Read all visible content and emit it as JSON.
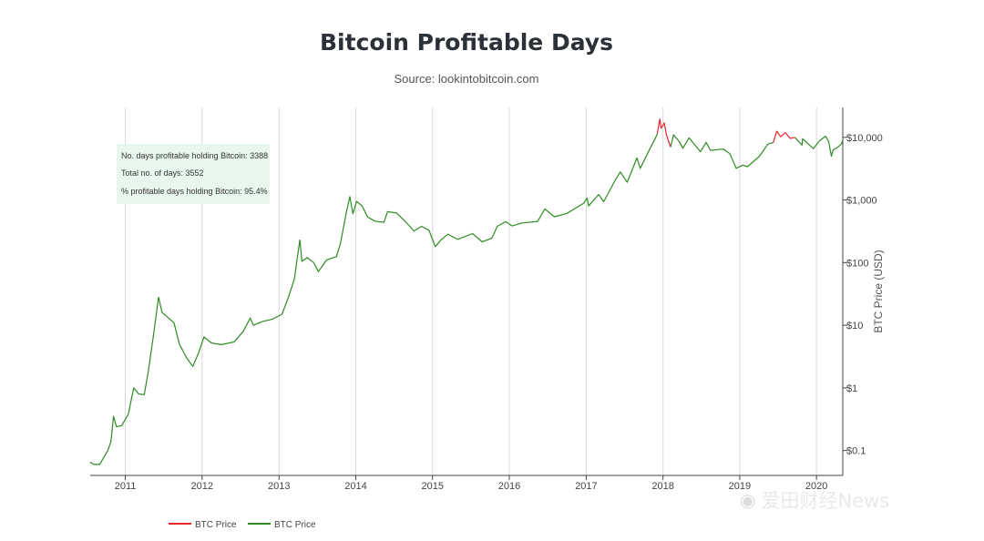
{
  "chart_data": {
    "type": "line",
    "title": "Bitcoin Profitable Days",
    "subtitle": "Source: lookintobitcoin.com",
    "ylabel": "BTC Price (USD)",
    "y_scale": "log",
    "ylim": [
      0.04,
      30000
    ],
    "xlim": [
      "2010-07-18",
      "2020-05-05"
    ],
    "x_tick_labels": [
      "2011",
      "2012",
      "2013",
      "2014",
      "2015",
      "2016",
      "2017",
      "2018",
      "2019",
      "2020"
    ],
    "y_tick_labels": [
      "$10,000",
      "$1,000",
      "$100",
      "$10",
      "$1",
      "$0.1"
    ],
    "y_tick_values": [
      10000,
      1000,
      100,
      10,
      1,
      0.1
    ],
    "grid": "vertical",
    "info_box": {
      "profitable_line": "No. days profitable holding Bitcoin: 3388",
      "total_line": "Total no. of days: 3552",
      "percent_line": "% profitable days holding Bitcoin: 95.4%"
    },
    "legend": [
      {
        "name": "BTC Price",
        "color": "#e8262a"
      },
      {
        "name": "BTC Price",
        "color": "#2e8b23"
      }
    ],
    "legend_placement": "bottom-left",
    "series": [
      {
        "name": "BTC Price",
        "color": "#2e8b23",
        "points": [
          [
            "2010-07-18",
            0.065
          ],
          [
            "2010-08-05",
            0.06
          ],
          [
            "2010-09-01",
            0.06
          ],
          [
            "2010-10-10",
            0.1
          ],
          [
            "2010-10-25",
            0.14
          ],
          [
            "2010-11-06",
            0.35
          ],
          [
            "2010-11-20",
            0.24
          ],
          [
            "2010-12-15",
            0.25
          ],
          [
            "2011-01-15",
            0.38
          ],
          [
            "2011-02-10",
            1.0
          ],
          [
            "2011-03-05",
            0.8
          ],
          [
            "2011-04-01",
            0.78
          ],
          [
            "2011-04-20",
            1.8
          ],
          [
            "2011-05-15",
            7.0
          ],
          [
            "2011-06-08",
            28
          ],
          [
            "2011-06-25",
            16
          ],
          [
            "2011-07-15",
            14
          ],
          [
            "2011-08-20",
            11
          ],
          [
            "2011-09-15",
            5.0
          ],
          [
            "2011-10-20",
            3.0
          ],
          [
            "2011-11-18",
            2.2
          ],
          [
            "2011-12-15",
            3.6
          ],
          [
            "2012-01-10",
            6.5
          ],
          [
            "2012-02-15",
            5.2
          ],
          [
            "2012-04-01",
            4.9
          ],
          [
            "2012-06-01",
            5.4
          ],
          [
            "2012-07-15",
            8.0
          ],
          [
            "2012-08-17",
            13
          ],
          [
            "2012-09-01",
            10
          ],
          [
            "2012-10-15",
            11.5
          ],
          [
            "2012-12-01",
            12.5
          ],
          [
            "2013-01-15",
            15
          ],
          [
            "2013-02-15",
            28
          ],
          [
            "2013-03-15",
            55
          ],
          [
            "2013-04-10",
            230
          ],
          [
            "2013-04-20",
            105
          ],
          [
            "2013-05-15",
            120
          ],
          [
            "2013-06-15",
            100
          ],
          [
            "2013-07-07",
            72
          ],
          [
            "2013-08-15",
            110
          ],
          [
            "2013-10-01",
            125
          ],
          [
            "2013-10-20",
            200
          ],
          [
            "2013-11-18",
            650
          ],
          [
            "2013-12-04",
            1130
          ],
          [
            "2013-12-18",
            600
          ],
          [
            "2014-01-05",
            950
          ],
          [
            "2014-02-01",
            800
          ],
          [
            "2014-02-25",
            540
          ],
          [
            "2014-04-01",
            460
          ],
          [
            "2014-05-15",
            440
          ],
          [
            "2014-06-01",
            650
          ],
          [
            "2014-07-15",
            620
          ],
          [
            "2014-08-15",
            490
          ],
          [
            "2014-10-05",
            320
          ],
          [
            "2014-11-10",
            380
          ],
          [
            "2014-12-15",
            330
          ],
          [
            "2015-01-14",
            180
          ],
          [
            "2015-02-10",
            230
          ],
          [
            "2015-03-15",
            285
          ],
          [
            "2015-05-01",
            235
          ],
          [
            "2015-07-10",
            290
          ],
          [
            "2015-08-25",
            215
          ],
          [
            "2015-10-10",
            245
          ],
          [
            "2015-11-05",
            380
          ],
          [
            "2015-12-15",
            450
          ],
          [
            "2016-01-15",
            385
          ],
          [
            "2016-03-01",
            430
          ],
          [
            "2016-05-15",
            455
          ],
          [
            "2016-06-18",
            720
          ],
          [
            "2016-08-02",
            540
          ],
          [
            "2016-10-01",
            610
          ],
          [
            "2016-12-20",
            890
          ],
          [
            "2017-01-05",
            1080
          ],
          [
            "2017-01-12",
            800
          ],
          [
            "2017-03-01",
            1220
          ],
          [
            "2017-03-25",
            940
          ],
          [
            "2017-05-20",
            2100
          ],
          [
            "2017-06-12",
            2800
          ],
          [
            "2017-07-15",
            1920
          ],
          [
            "2017-08-30",
            4700
          ],
          [
            "2017-09-15",
            3200
          ],
          [
            "2017-11-01",
            6700
          ],
          [
            "2017-11-28",
            10000
          ],
          [
            "2017-12-05",
            11500
          ]
        ]
      },
      {
        "name": "BTC Price",
        "color": "#e8262a",
        "points": [
          [
            "2017-12-05",
            11500
          ],
          [
            "2017-12-17",
            19500
          ],
          [
            "2017-12-23",
            14000
          ],
          [
            "2018-01-07",
            17000
          ],
          [
            "2018-01-17",
            11000
          ],
          [
            "2018-02-06",
            7000
          ]
        ]
      },
      {
        "name": "BTC Price",
        "color": "#2e8b23",
        "points": [
          [
            "2018-02-06",
            7000
          ],
          [
            "2018-02-20",
            11000
          ],
          [
            "2018-03-20",
            8500
          ],
          [
            "2018-04-05",
            6700
          ],
          [
            "2018-05-05",
            9800
          ],
          [
            "2018-06-28",
            5900
          ],
          [
            "2018-07-25",
            8300
          ],
          [
            "2018-08-15",
            6200
          ],
          [
            "2018-10-15",
            6500
          ],
          [
            "2018-11-15",
            5500
          ],
          [
            "2018-12-15",
            3200
          ],
          [
            "2019-01-15",
            3600
          ],
          [
            "2019-02-07",
            3400
          ],
          [
            "2019-04-05",
            5000
          ],
          [
            "2019-05-15",
            7800
          ],
          [
            "2019-06-10",
            8300
          ]
        ]
      },
      {
        "name": "BTC Price",
        "color": "#e8262a",
        "points": [
          [
            "2019-06-10",
            8300
          ],
          [
            "2019-06-26",
            12500
          ],
          [
            "2019-07-15",
            10200
          ],
          [
            "2019-08-06",
            11900
          ],
          [
            "2019-08-29",
            9600
          ],
          [
            "2019-09-20",
            10000
          ]
        ]
      },
      {
        "name": "BTC Price",
        "color": "#2e8b23",
        "points": [
          [
            "2019-09-20",
            10000
          ],
          [
            "2019-10-24",
            7500
          ],
          [
            "2019-10-27",
            9500
          ],
          [
            "2019-12-17",
            6600
          ],
          [
            "2020-01-15",
            8800
          ],
          [
            "2020-02-13",
            10400
          ],
          [
            "2020-02-28",
            8600
          ],
          [
            "2020-03-12",
            5000
          ],
          [
            "2020-03-20",
            6300
          ],
          [
            "2020-04-10",
            6900
          ],
          [
            "2020-04-28",
            7800
          ],
          [
            "2020-05-05",
            9000
          ]
        ]
      }
    ]
  },
  "watermark": {
    "text": "爱田财经News",
    "icon": "wechat-icon"
  }
}
